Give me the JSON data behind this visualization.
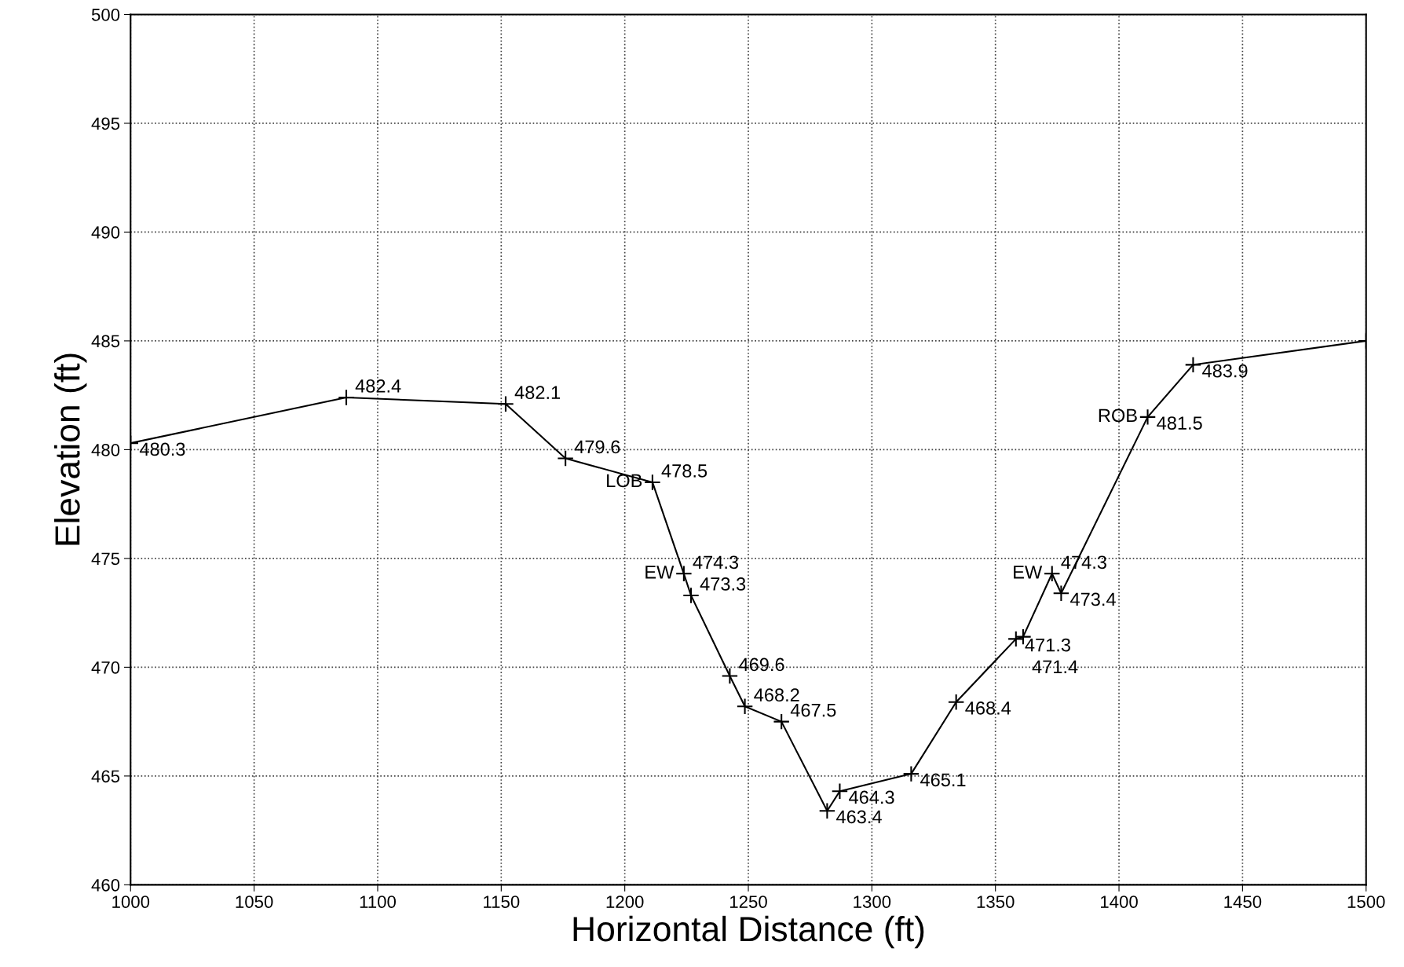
{
  "chart_data": {
    "type": "line",
    "xlabel": "Horizontal Distance (ft)",
    "ylabel": "Elevation (ft)",
    "x": [
      1000,
      1087.3,
      1151.8,
      1176,
      1211.2,
      1223.9,
      1226.8,
      1242.5,
      1248.6,
      1263.4,
      1281.9,
      1287,
      1315.9,
      1334.1,
      1358.3,
      1361.2,
      1372.9,
      1376.6,
      1411.6,
      1430,
      1500
    ],
    "series": [
      {
        "color": "#000000",
        "values": [
          480.3,
          482.4,
          482.1,
          479.6,
          478.5,
          474.3,
          473.3,
          469.6,
          468.2,
          467.5,
          463.4,
          464.3,
          465.1,
          468.4,
          471.3,
          471.4,
          474.3,
          473.4,
          481.5,
          483.9,
          485.0
        ],
        "value_labels": [
          "480.3",
          "482.4",
          "482.1",
          "479.6",
          "478.5",
          "474.3",
          "473.3",
          "469.6",
          "468.2",
          "467.5",
          "463.4",
          "464.3",
          "465.1",
          "468.4",
          "471.3",
          "471.4",
          "474.3",
          "473.4",
          "481.5",
          "483.9",
          null
        ]
      }
    ],
    "annotations": [
      {
        "text": "LOB",
        "x": 1211.2,
        "y": 478.5
      },
      {
        "text": "EW",
        "x": 1223.9,
        "y": 474.3
      },
      {
        "text": "EW",
        "x": 1372.9,
        "y": 474.3
      },
      {
        "text": "ROB",
        "x": 1411.6,
        "y": 481.5
      }
    ],
    "xlim": [
      1000,
      1500
    ],
    "xticks": [
      1000,
      1050,
      1100,
      1150,
      1200,
      1250,
      1300,
      1350,
      1400,
      1450,
      1500
    ],
    "ylim": [
      460,
      500
    ],
    "yticks": [
      460,
      465,
      470,
      475,
      480,
      485,
      490,
      495,
      500
    ],
    "grid": true,
    "marker": "cross",
    "line_style": "solid",
    "legend": false
  }
}
